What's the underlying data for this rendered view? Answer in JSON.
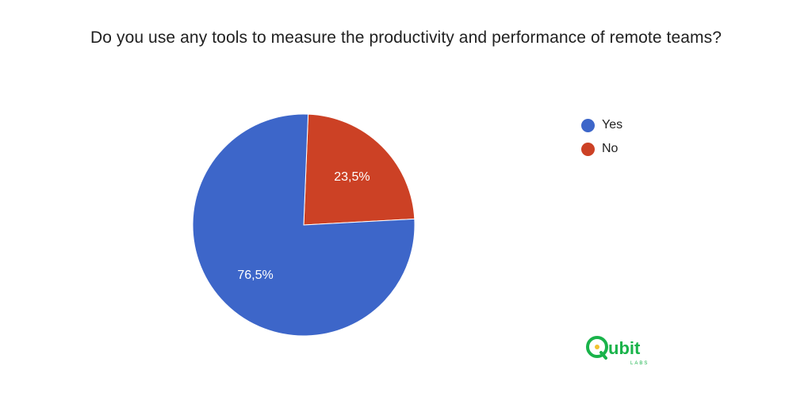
{
  "chart_data": {
    "type": "pie",
    "title": "Do you use any tools to measure the productivity and performance of remote teams?",
    "slices": [
      {
        "label": "No",
        "value": 23.5,
        "display": "23,5%",
        "color": "#cc4125"
      },
      {
        "label": "Yes",
        "value": 76.5,
        "display": "76,5%",
        "color": "#3d66c9"
      }
    ],
    "legend": {
      "position": "right",
      "entries": [
        {
          "label": "Yes",
          "color": "#3d66c9"
        },
        {
          "label": "No",
          "color": "#cc4125"
        }
      ]
    }
  },
  "logo": {
    "name": "Qubit Labs",
    "wordmark": "ubit",
    "subtext": "LABS",
    "color": "#19b34a",
    "accent": "#f2c230"
  }
}
